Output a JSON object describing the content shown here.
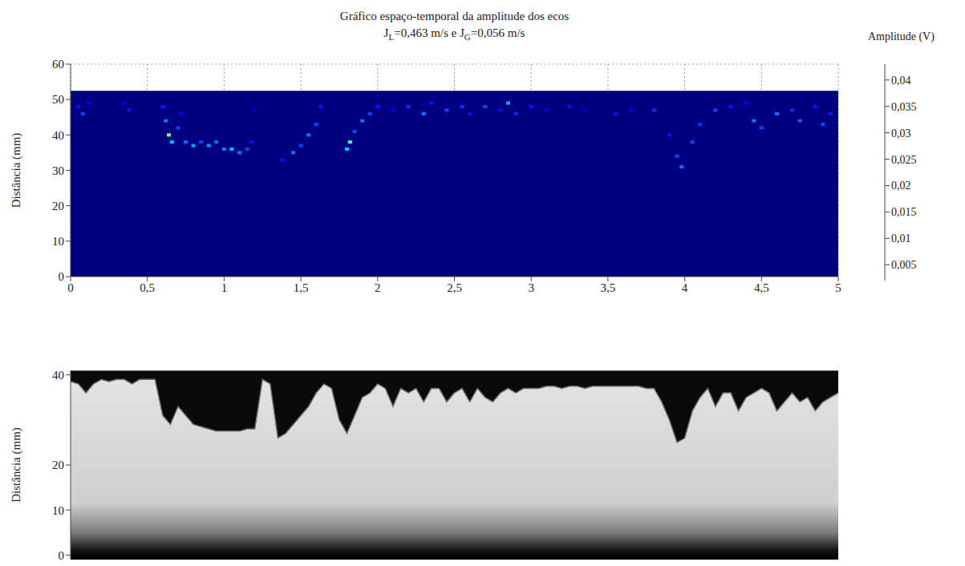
{
  "chart_data": [
    {
      "type": "heatmap",
      "title": "Gráfico espaço-temporal da amplitude dos ecos",
      "subtitle": "JL=0,463 m/s e JG=0,056 m/s",
      "y_label": "Distância (mm)",
      "xlim": [
        0,
        5
      ],
      "xticks": [
        0,
        {
          "value": 0.5,
          "label": "0,5"
        },
        1,
        {
          "value": 1.5,
          "label": "1,5"
        },
        2,
        {
          "value": 2.5,
          "label": "2,5"
        },
        3,
        {
          "value": 3.5,
          "label": "3,5"
        },
        4,
        {
          "value": 4.5,
          "label": "4,5"
        },
        5
      ],
      "ylim": [
        0,
        60
      ],
      "yticks": [
        0,
        10,
        20,
        30,
        40,
        50,
        60
      ],
      "grid": true,
      "measured_range": [
        0,
        52.5
      ],
      "cells": [
        [
          0.05,
          48,
          0.008
        ],
        [
          0.08,
          46,
          0.01
        ],
        [
          0.12,
          49,
          0.007
        ],
        [
          0.35,
          49,
          0.006
        ],
        [
          0.38,
          47,
          0.008
        ],
        [
          0.6,
          48,
          0.008
        ],
        [
          0.62,
          44,
          0.012
        ],
        [
          0.64,
          40,
          0.022
        ],
        [
          0.66,
          38,
          0.015
        ],
        [
          0.7,
          42,
          0.01
        ],
        [
          0.72,
          46,
          0.007
        ],
        [
          0.75,
          38,
          0.012
        ],
        [
          0.8,
          37,
          0.014
        ],
        [
          0.85,
          38,
          0.01
        ],
        [
          0.9,
          37,
          0.013
        ],
        [
          0.95,
          38,
          0.012
        ],
        [
          1.0,
          36,
          0.012
        ],
        [
          1.05,
          36,
          0.015
        ],
        [
          1.1,
          35,
          0.012
        ],
        [
          1.15,
          36,
          0.01
        ],
        [
          1.18,
          38,
          0.008
        ],
        [
          1.2,
          47,
          0.006
        ],
        [
          1.38,
          33,
          0.008
        ],
        [
          1.45,
          35,
          0.012
        ],
        [
          1.5,
          37,
          0.01
        ],
        [
          1.55,
          40,
          0.012
        ],
        [
          1.6,
          43,
          0.01
        ],
        [
          1.63,
          48,
          0.008
        ],
        [
          1.8,
          36,
          0.015
        ],
        [
          1.82,
          38,
          0.02
        ],
        [
          1.85,
          41,
          0.01
        ],
        [
          1.9,
          44,
          0.012
        ],
        [
          1.95,
          46,
          0.01
        ],
        [
          2.0,
          48,
          0.008
        ],
        [
          2.1,
          47,
          0.007
        ],
        [
          2.2,
          48,
          0.009
        ],
        [
          2.3,
          46,
          0.012
        ],
        [
          2.35,
          49,
          0.008
        ],
        [
          2.45,
          47,
          0.01
        ],
        [
          2.55,
          48,
          0.009
        ],
        [
          2.6,
          46,
          0.008
        ],
        [
          2.7,
          48,
          0.01
        ],
        [
          2.8,
          47,
          0.008
        ],
        [
          2.85,
          49,
          0.014
        ],
        [
          2.9,
          46,
          0.009
        ],
        [
          3.0,
          48,
          0.008
        ],
        [
          3.1,
          47,
          0.007
        ],
        [
          3.25,
          48,
          0.008
        ],
        [
          3.35,
          47,
          0.006
        ],
        [
          3.55,
          46,
          0.008
        ],
        [
          3.65,
          47,
          0.007
        ],
        [
          3.8,
          47,
          0.009
        ],
        [
          3.9,
          40,
          0.008
        ],
        [
          3.95,
          34,
          0.01
        ],
        [
          3.98,
          31,
          0.012
        ],
        [
          4.05,
          38,
          0.01
        ],
        [
          4.1,
          43,
          0.009
        ],
        [
          4.2,
          47,
          0.01
        ],
        [
          4.3,
          48,
          0.008
        ],
        [
          4.4,
          49,
          0.007
        ],
        [
          4.45,
          44,
          0.012
        ],
        [
          4.5,
          42,
          0.01
        ],
        [
          4.6,
          46,
          0.012
        ],
        [
          4.7,
          47,
          0.009
        ],
        [
          4.75,
          44,
          0.011
        ],
        [
          4.85,
          48,
          0.008
        ],
        [
          4.9,
          43,
          0.01
        ],
        [
          4.95,
          46,
          0.008
        ]
      ],
      "colorbar_label": "Amplitude (V)",
      "colorbar_range": [
        0.002,
        0.043
      ],
      "colorbar_ticks": [
        {
          "value": 0.005,
          "label": "0,005"
        },
        {
          "value": 0.01,
          "label": "0,01"
        },
        {
          "value": 0.015,
          "label": "0,015"
        },
        {
          "value": 0.02,
          "label": "0,02"
        },
        {
          "value": 0.025,
          "label": "0,025"
        },
        {
          "value": 0.03,
          "label": "0,03"
        },
        {
          "value": 0.035,
          "label": "0,035"
        },
        {
          "value": 0.04,
          "label": "0,04"
        }
      ]
    },
    {
      "type": "area",
      "y_label": "Distância (mm)",
      "xlim": [
        0,
        5
      ],
      "ylim": [
        -1,
        41
      ],
      "yticks": [
        0,
        10,
        20,
        40
      ],
      "tick_labels": "y",
      "x": [
        0,
        0.05,
        0.1,
        0.15,
        0.2,
        0.25,
        0.3,
        0.35,
        0.4,
        0.45,
        0.5,
        0.55,
        0.6,
        0.65,
        0.7,
        0.75,
        0.8,
        0.85,
        0.9,
        0.95,
        1,
        1.05,
        1.1,
        1.15,
        1.2,
        1.25,
        1.3,
        1.35,
        1.4,
        1.45,
        1.5,
        1.55,
        1.6,
        1.65,
        1.7,
        1.75,
        1.8,
        1.85,
        1.9,
        1.95,
        2,
        2.05,
        2.1,
        2.15,
        2.2,
        2.25,
        2.3,
        2.35,
        2.4,
        2.45,
        2.5,
        2.55,
        2.6,
        2.65,
        2.7,
        2.75,
        2.8,
        2.85,
        2.9,
        2.95,
        3,
        3.05,
        3.1,
        3.15,
        3.2,
        3.25,
        3.3,
        3.35,
        3.4,
        3.45,
        3.5,
        3.55,
        3.6,
        3.65,
        3.7,
        3.75,
        3.8,
        3.85,
        3.9,
        3.95,
        4,
        4.05,
        4.1,
        4.15,
        4.2,
        4.25,
        4.3,
        4.35,
        4.4,
        4.45,
        4.5,
        4.55,
        4.6,
        4.65,
        4.7,
        4.75,
        4.8,
        4.85,
        4.9,
        4.95,
        5
      ],
      "values": [
        38.5,
        38,
        36,
        38,
        39,
        38.5,
        39,
        39,
        38,
        39,
        39,
        39,
        31,
        29,
        33,
        31,
        29,
        28.5,
        28,
        27.5,
        27.5,
        27.5,
        27.5,
        28,
        28,
        39,
        38,
        26,
        27,
        29,
        31,
        33,
        36,
        38,
        37,
        30,
        27,
        31,
        35,
        36,
        38,
        37,
        33,
        37,
        36,
        37,
        34,
        37,
        37,
        34,
        36,
        37,
        34,
        37,
        35,
        34,
        36,
        37,
        36,
        37,
        37,
        37,
        37.5,
        37.5,
        37,
        37.5,
        37.5,
        37,
        37.5,
        37.5,
        37.5,
        37.5,
        37.5,
        37.5,
        37.5,
        37,
        37,
        34,
        30,
        25,
        26,
        32,
        35,
        37,
        33,
        36,
        36,
        32,
        35,
        36,
        37,
        36,
        32,
        34,
        36,
        34,
        35,
        32,
        34,
        35,
        36
      ]
    }
  ]
}
